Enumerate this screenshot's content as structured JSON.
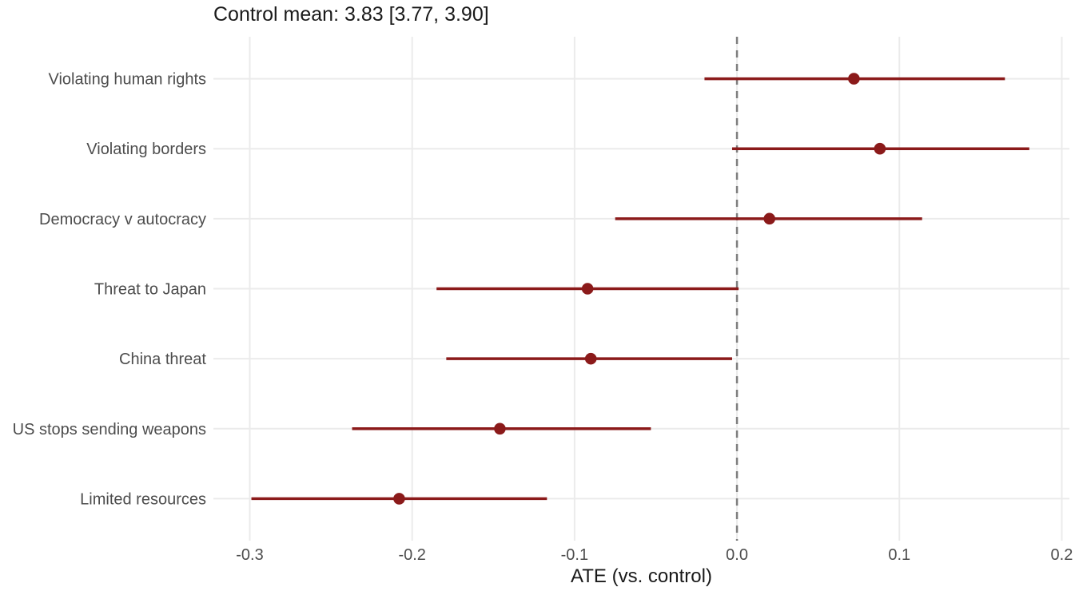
{
  "title": "Control mean: 3.83 [3.77, 3.90]",
  "chart_data": {
    "type": "scatter",
    "subtype": "horizontal-pointrange-forest-plot",
    "title": "Control mean: 3.83 [3.77, 3.90]",
    "xlabel": "ATE (vs. control)",
    "ylabel": "",
    "categories": [
      "Violating human rights",
      "Violating borders",
      "Democracy v autocracy",
      "Threat to Japan",
      "China threat",
      "US stops sending weapons",
      "Limited resources"
    ],
    "series": [
      {
        "name": "ATE (vs. control)",
        "values": [
          0.072,
          0.088,
          0.02,
          -0.092,
          -0.09,
          -0.146,
          -0.208
        ],
        "ci_low": [
          -0.02,
          -0.003,
          -0.075,
          -0.185,
          -0.179,
          -0.237,
          -0.299
        ],
        "ci_high": [
          0.165,
          0.18,
          0.114,
          0.001,
          -0.003,
          -0.053,
          -0.117
        ]
      }
    ],
    "x_ticks": [
      -0.3,
      -0.2,
      -0.1,
      0.0,
      0.1,
      0.2
    ],
    "x_tick_labels": [
      "-0.3",
      "-0.2",
      "-0.1",
      "0.0",
      "0.1",
      "0.2"
    ],
    "xlim": [
      -0.3224,
      0.2047
    ],
    "reference_line_x": 0,
    "grid": "on",
    "legend": "none",
    "colors": {
      "point": "#8B1A1A",
      "ci_line": "#8B1A1A",
      "reference_line": "#7F7F7F",
      "gridline": "#EBEBEB",
      "tick_label": "#4D4D4D",
      "axis_title": "#1a1a1a",
      "title": "#1a1a1a",
      "background": "#FFFFFF"
    }
  }
}
